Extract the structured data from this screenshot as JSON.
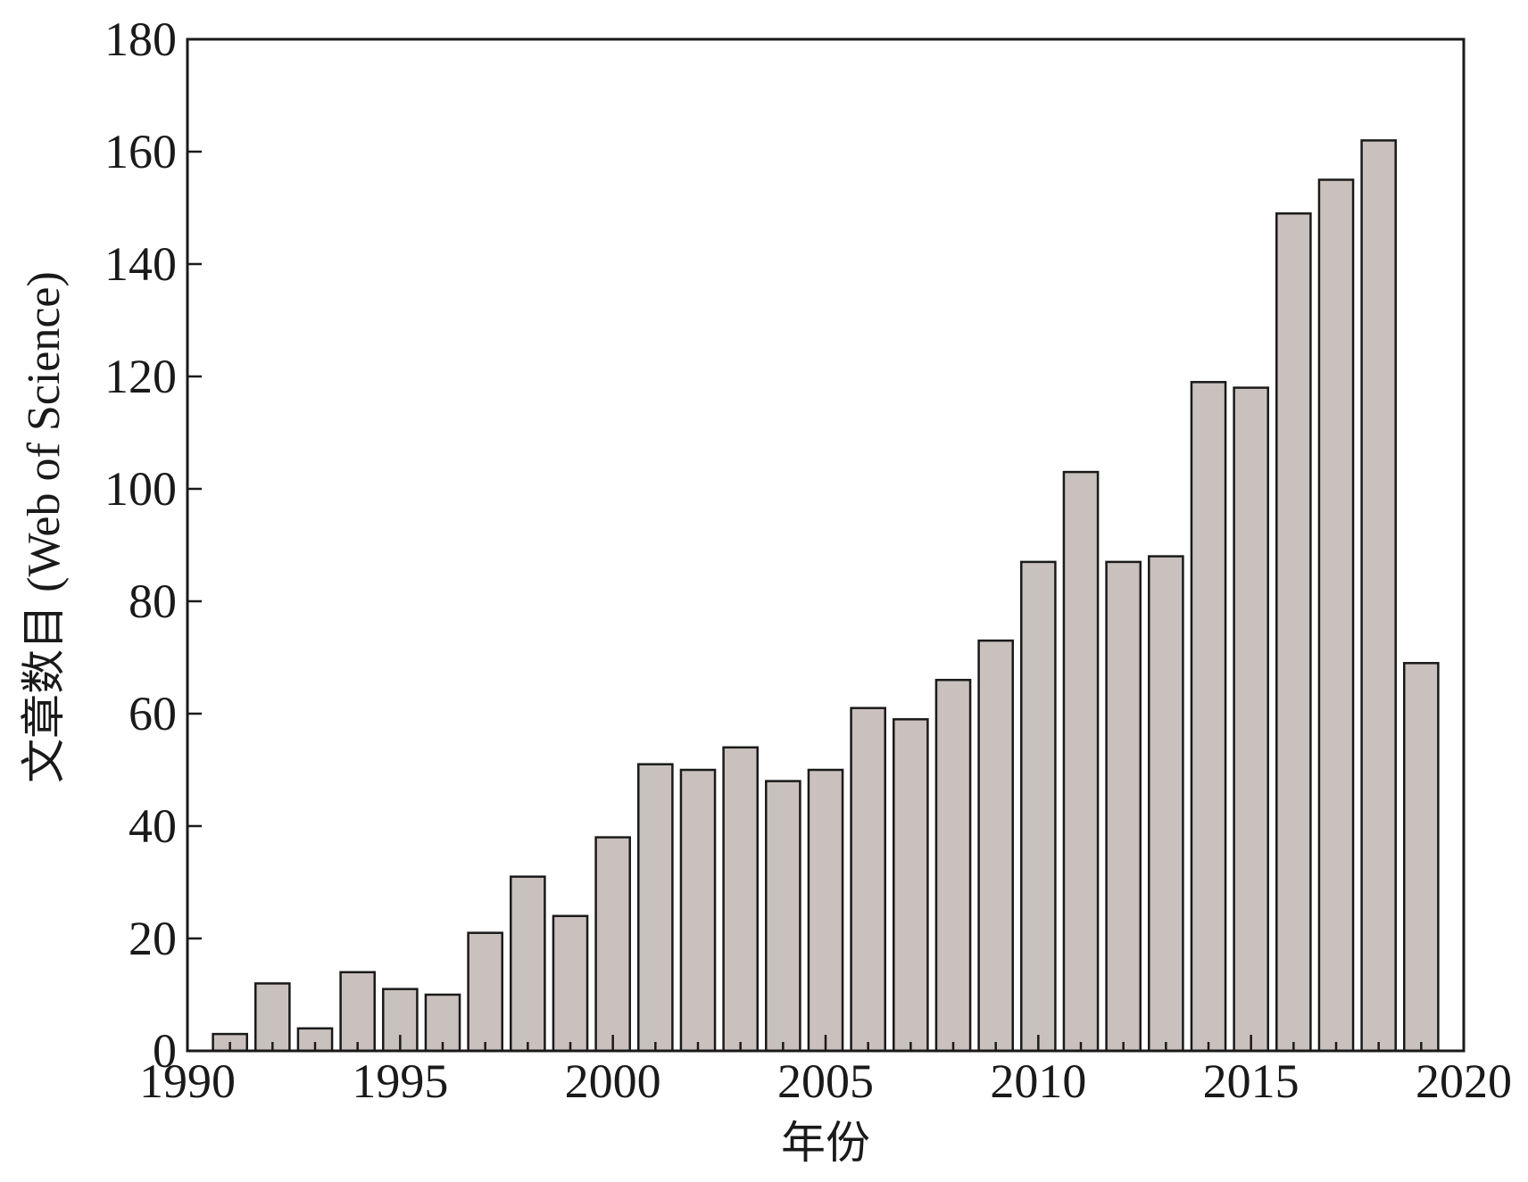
{
  "chart_data": {
    "type": "bar",
    "x": [
      1991,
      1992,
      1993,
      1994,
      1995,
      1996,
      1997,
      1998,
      1999,
      2000,
      2001,
      2002,
      2003,
      2004,
      2005,
      2006,
      2007,
      2008,
      2009,
      2010,
      2011,
      2012,
      2013,
      2014,
      2015,
      2016,
      2017,
      2018,
      2019
    ],
    "values": [
      3,
      12,
      4,
      14,
      11,
      10,
      21,
      31,
      24,
      38,
      51,
      50,
      54,
      48,
      50,
      61,
      59,
      66,
      73,
      87,
      103,
      87,
      88,
      119,
      118,
      149,
      155,
      162,
      69
    ],
    "xlabel": "年份",
    "ylabel_cn": "文章数目",
    "ylabel_en": "(Web of Science)",
    "xlim": [
      1990,
      2020
    ],
    "ylim": [
      0,
      180
    ],
    "xticks": [
      1990,
      1995,
      2000,
      2005,
      2010,
      2015,
      2020
    ],
    "yticks": [
      0,
      20,
      40,
      60,
      80,
      100,
      120,
      140,
      160,
      180
    ],
    "bar_color": "#c9c1be",
    "edge_color": "#1a1a1a",
    "grid": false,
    "legend": "none"
  }
}
